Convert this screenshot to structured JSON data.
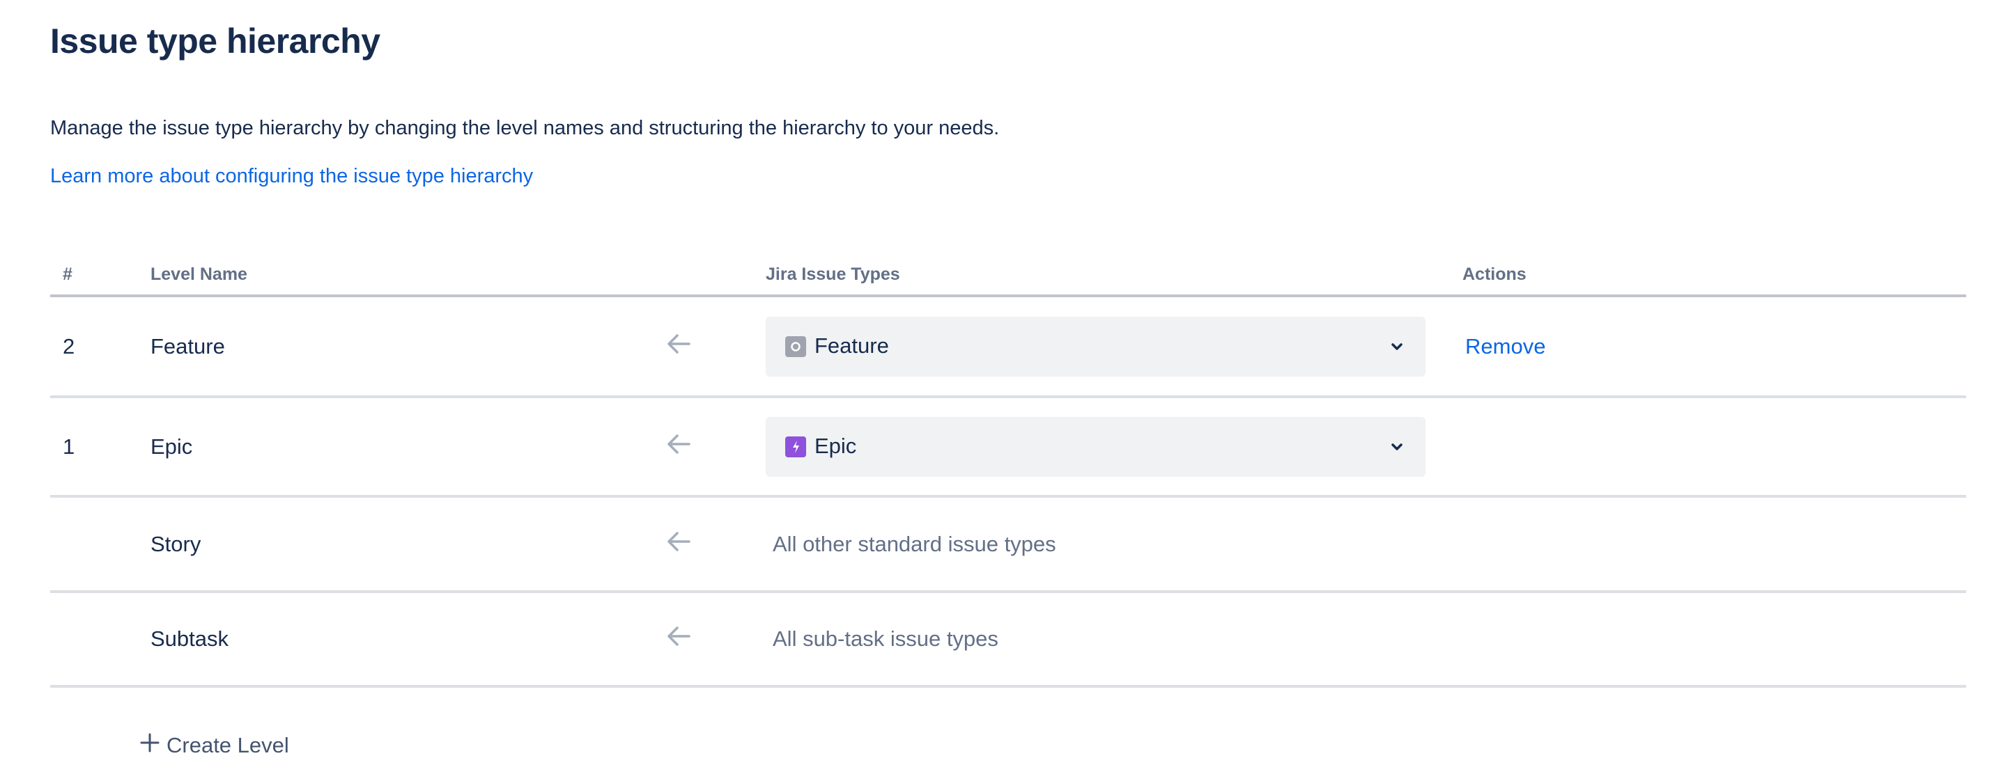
{
  "page": {
    "title": "Issue type hierarchy",
    "description": "Manage the issue type hierarchy by changing the level names and structuring the hierarchy to your needs.",
    "learn_more_link": "Learn more about configuring the issue type hierarchy"
  },
  "table": {
    "headers": {
      "number": "#",
      "level_name": "Level Name",
      "issue_types": "Jira Issue Types",
      "actions": "Actions"
    },
    "rows": [
      {
        "number": "2",
        "level_name": "Feature",
        "issue_type": "Feature",
        "icon": "feature-icon",
        "icon_color": "#9ea3ad",
        "action": "Remove"
      },
      {
        "number": "1",
        "level_name": "Epic",
        "issue_type": "Epic",
        "icon": "epic-lightning-icon",
        "icon_color": "#8f50dc"
      },
      {
        "level_name": "Story",
        "issue_type_text": "All other standard issue types"
      },
      {
        "level_name": "Subtask",
        "issue_type_text": "All sub-task issue types"
      }
    ]
  },
  "create_level_label": "Create Level",
  "colors": {
    "link": "#0c66e4",
    "text": "#172b4d",
    "muted": "#626f86",
    "select_bg": "#f1f2f4"
  }
}
